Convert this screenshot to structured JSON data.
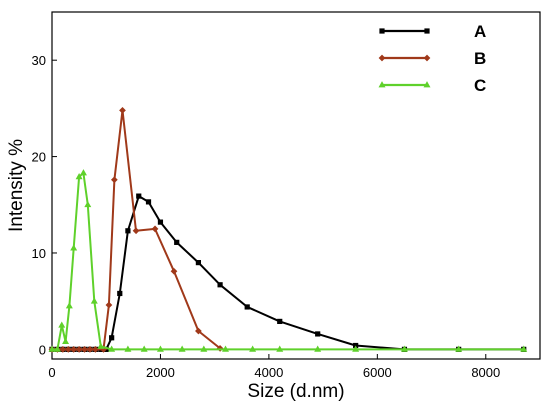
{
  "chart_data": {
    "type": "line",
    "title": "",
    "xlabel": "Size (d.nm)",
    "ylabel": "Intensity %",
    "xlim": [
      0,
      9000
    ],
    "ylim": [
      -1,
      35
    ],
    "x_ticks": [
      0,
      2000,
      4000,
      6000,
      8000
    ],
    "x_tick_labels": [
      "0",
      "2000",
      "4000",
      "6000",
      "8000"
    ],
    "y_ticks": [
      0,
      10,
      20,
      30
    ],
    "y_tick_labels": [
      "0",
      "10",
      "20",
      "30"
    ],
    "grid": false,
    "legend_position": "top-right",
    "series": [
      {
        "name": "A",
        "color": "#000000",
        "marker": "square",
        "x": [
          0,
          100,
          200,
          300,
          400,
          500,
          600,
          700,
          800,
          900,
          1000,
          1100,
          1250,
          1400,
          1600,
          1780,
          2000,
          2300,
          2700,
          3100,
          3600,
          4200,
          4900,
          5600,
          6500,
          7500,
          8700
        ],
        "y": [
          0,
          0,
          0,
          0,
          0,
          0,
          0,
          0,
          0,
          0,
          0,
          1.2,
          5.8,
          12.3,
          15.9,
          15.3,
          13.2,
          11.1,
          9.0,
          6.7,
          4.4,
          2.9,
          1.6,
          0.4,
          0,
          0,
          0
        ]
      },
      {
        "name": "B",
        "color": "#a0391a",
        "marker": "diamond",
        "x": [
          0,
          100,
          200,
          300,
          400,
          500,
          600,
          700,
          800,
          950,
          1050,
          1150,
          1300,
          1550,
          1900,
          2250,
          2700,
          3100
        ],
        "y": [
          0,
          0,
          0,
          0,
          0,
          0,
          0,
          0,
          0,
          0,
          4.6,
          17.6,
          24.8,
          12.3,
          12.5,
          8.1,
          1.9,
          0.1
        ]
      },
      {
        "name": "C",
        "color": "#5fd12b",
        "marker": "triangle",
        "x": [
          0,
          100,
          180,
          250,
          320,
          400,
          500,
          580,
          660,
          780,
          900,
          1100,
          1400,
          1700,
          2000,
          2400,
          2800,
          3200,
          3700,
          4200,
          4900,
          5600,
          6500,
          7500,
          8700
        ],
        "y": [
          0,
          0,
          2.5,
          0.8,
          4.5,
          10.5,
          17.9,
          18.3,
          15.0,
          5.0,
          0.3,
          0,
          0,
          0,
          0,
          0,
          0,
          0,
          0,
          0,
          0,
          0,
          0,
          0,
          0
        ]
      }
    ]
  }
}
